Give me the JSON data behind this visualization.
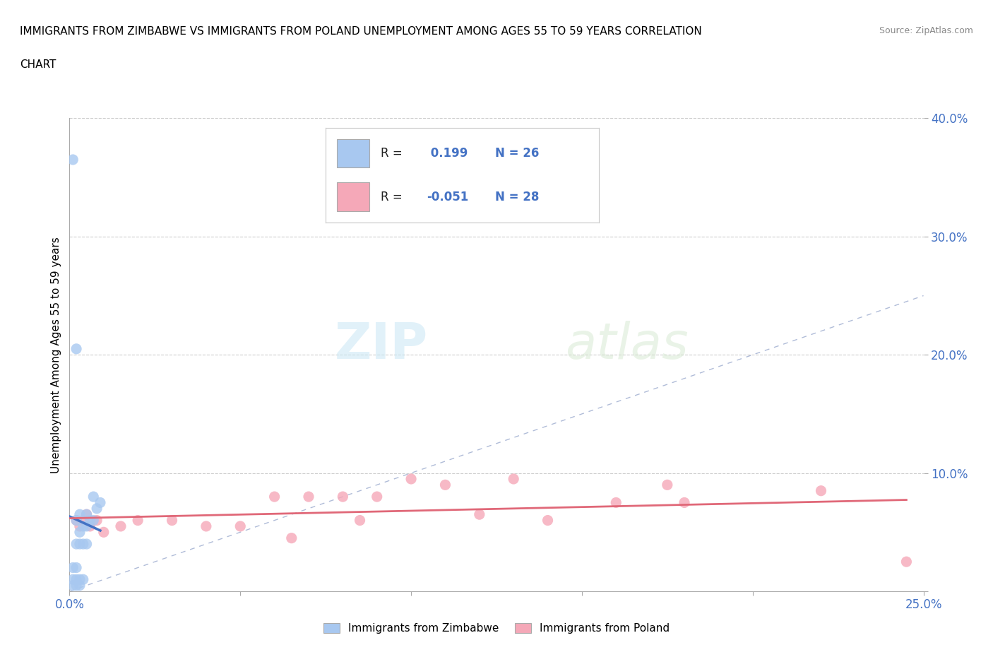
{
  "title_line1": "IMMIGRANTS FROM ZIMBABWE VS IMMIGRANTS FROM POLAND UNEMPLOYMENT AMONG AGES 55 TO 59 YEARS CORRELATION",
  "title_line2": "CHART",
  "source": "Source: ZipAtlas.com",
  "ylabel": "Unemployment Among Ages 55 to 59 years",
  "xlim": [
    0.0,
    0.25
  ],
  "ylim": [
    0.0,
    0.4
  ],
  "xticks": [
    0.0,
    0.05,
    0.1,
    0.15,
    0.2,
    0.25
  ],
  "yticks": [
    0.0,
    0.1,
    0.2,
    0.3,
    0.4
  ],
  "R_zimbabwe": 0.199,
  "N_zimbabwe": 26,
  "R_poland": -0.051,
  "N_poland": 28,
  "zimbabwe_color": "#a8c8f0",
  "poland_color": "#f5a8b8",
  "zimbabwe_line_color": "#4472c4",
  "poland_line_color": "#e06878",
  "reference_line_color": "#b0bcd8",
  "watermark_zip": "ZIP",
  "watermark_atlas": "atlas",
  "zimbabwe_scatter_x": [
    0.001,
    0.001,
    0.001,
    0.002,
    0.002,
    0.002,
    0.002,
    0.002,
    0.003,
    0.003,
    0.003,
    0.003,
    0.003,
    0.004,
    0.004,
    0.004,
    0.005,
    0.005,
    0.005,
    0.006,
    0.007,
    0.007,
    0.008,
    0.009,
    0.001,
    0.002
  ],
  "zimbabwe_scatter_y": [
    0.005,
    0.01,
    0.02,
    0.005,
    0.01,
    0.02,
    0.04,
    0.06,
    0.005,
    0.01,
    0.04,
    0.05,
    0.065,
    0.01,
    0.04,
    0.055,
    0.04,
    0.055,
    0.065,
    0.06,
    0.06,
    0.08,
    0.07,
    0.075,
    0.365,
    0.205
  ],
  "poland_scatter_x": [
    0.002,
    0.003,
    0.004,
    0.005,
    0.006,
    0.008,
    0.01,
    0.015,
    0.02,
    0.03,
    0.04,
    0.05,
    0.06,
    0.065,
    0.07,
    0.08,
    0.085,
    0.09,
    0.1,
    0.11,
    0.12,
    0.13,
    0.14,
    0.16,
    0.175,
    0.18,
    0.22,
    0.245
  ],
  "poland_scatter_y": [
    0.06,
    0.055,
    0.06,
    0.065,
    0.055,
    0.06,
    0.05,
    0.055,
    0.06,
    0.06,
    0.055,
    0.055,
    0.08,
    0.045,
    0.08,
    0.08,
    0.06,
    0.08,
    0.095,
    0.09,
    0.065,
    0.095,
    0.06,
    0.075,
    0.09,
    0.075,
    0.085,
    0.025
  ]
}
